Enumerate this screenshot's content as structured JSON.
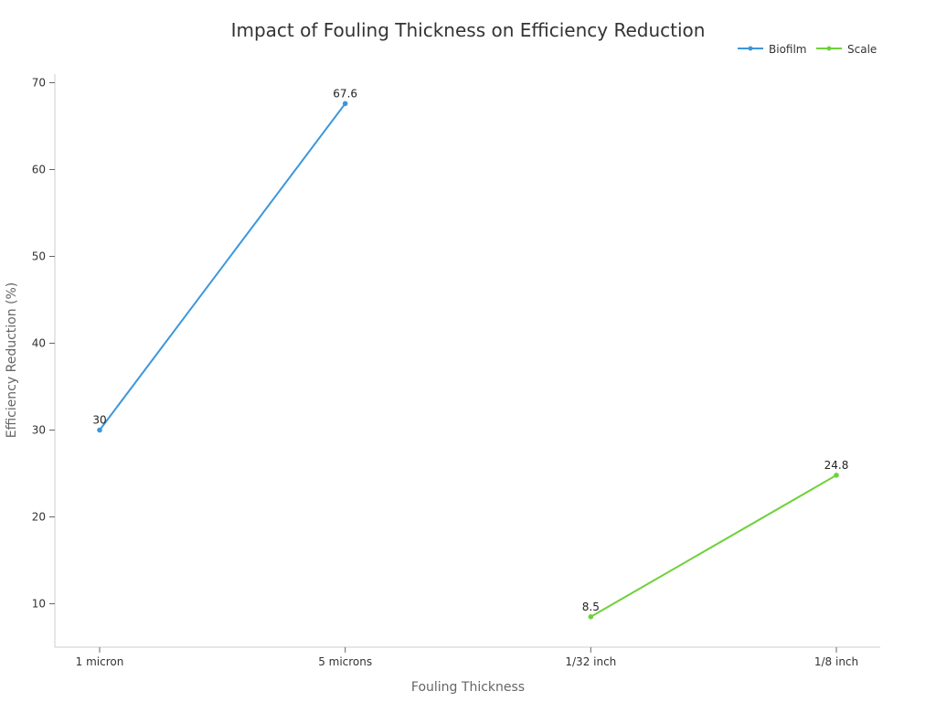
{
  "chart_data": {
    "type": "line",
    "title": "Impact of Fouling Thickness on Efficiency Reduction",
    "xlabel": "Fouling Thickness",
    "ylabel": "Efficiency Reduction (%)",
    "categories": [
      "1 micron",
      "5 microns",
      "1/32 inch",
      "1/8 inch"
    ],
    "ylim": [
      5,
      71
    ],
    "yticks": [
      10,
      20,
      30,
      40,
      50,
      60,
      70
    ],
    "legend_position": "top-right",
    "series": [
      {
        "name": "Biofilm",
        "color": "#3b97db",
        "values": [
          30,
          67.6,
          null,
          null
        ],
        "labels": [
          "30",
          "67.6",
          null,
          null
        ]
      },
      {
        "name": "Scale",
        "color": "#6fd13a",
        "values": [
          null,
          null,
          8.5,
          24.8
        ],
        "labels": [
          null,
          null,
          "8.5",
          "24.8"
        ]
      }
    ]
  }
}
